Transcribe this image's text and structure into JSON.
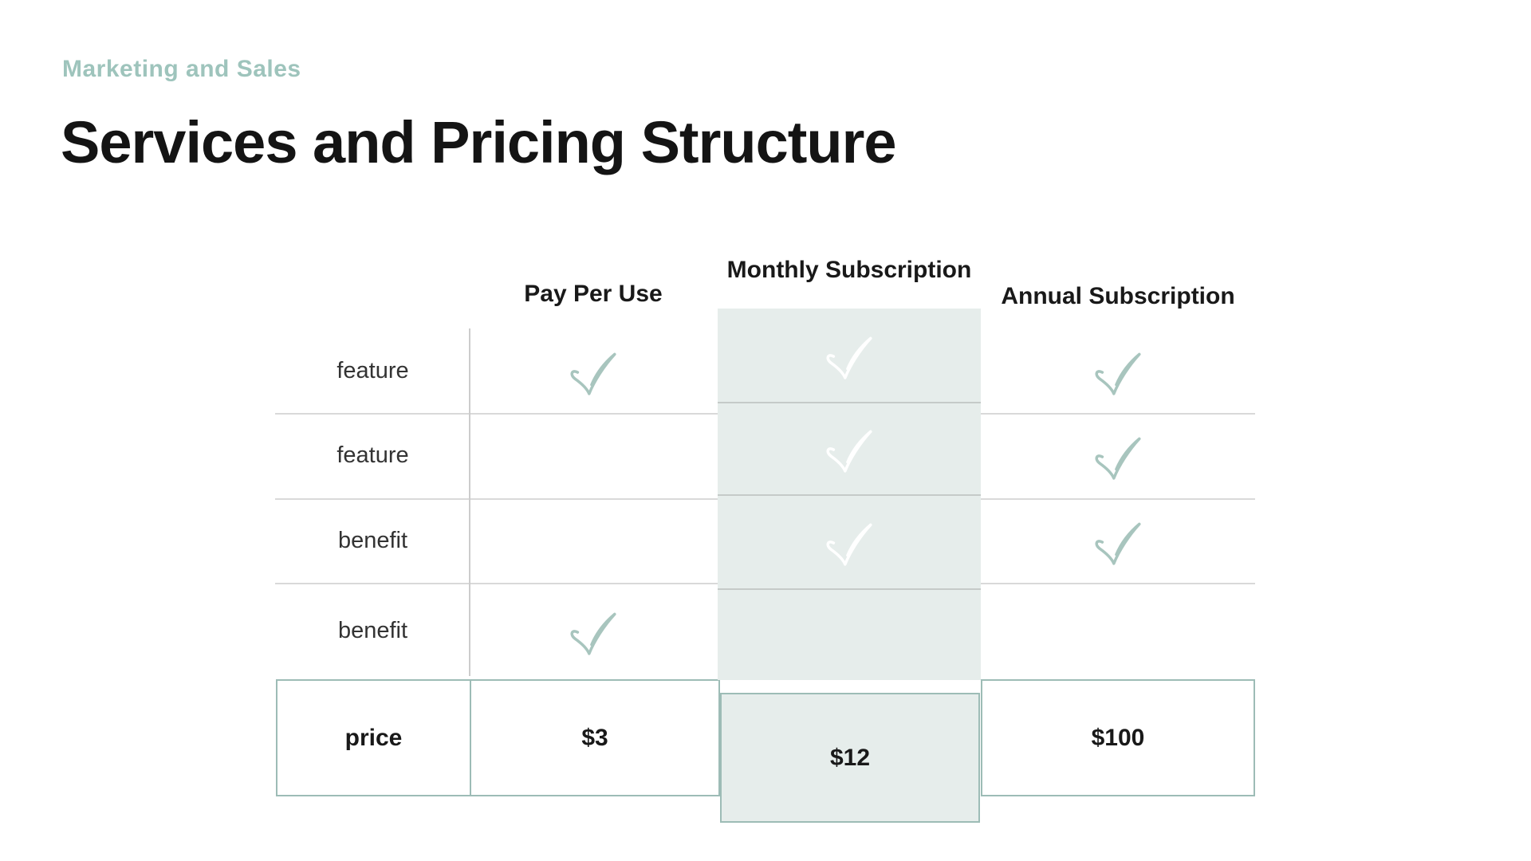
{
  "slide": {
    "eyebrow": "Marketing and Sales",
    "title": "Services and Pricing Structure"
  },
  "pricing_table": {
    "row_header_column": {
      "rows": [
        "feature",
        "feature",
        "benefit",
        "benefit"
      ],
      "price_label": "price"
    },
    "columns": [
      {
        "id": "pay_per_use",
        "label": "Pay Per Use",
        "price": "$3",
        "highlighted": false,
        "checks": [
          true,
          false,
          false,
          true
        ]
      },
      {
        "id": "monthly",
        "label": "Monthly Subscription",
        "price": "$12",
        "highlighted": true,
        "checks": [
          true,
          true,
          true,
          false
        ]
      },
      {
        "id": "annual",
        "label": "Annual Subscription",
        "price": "$100",
        "highlighted": false,
        "checks": [
          true,
          true,
          true,
          false
        ]
      }
    ]
  },
  "icons": {
    "check": "check-icon"
  },
  "colors": {
    "check_sage": "#a8c5be",
    "check_white": "#ffffff",
    "mint_fill": "#e6edeb",
    "border_sage": "#9dbcb6",
    "eyebrow_text": "#9ec4bc",
    "grid_line": "#d9d9d9"
  }
}
